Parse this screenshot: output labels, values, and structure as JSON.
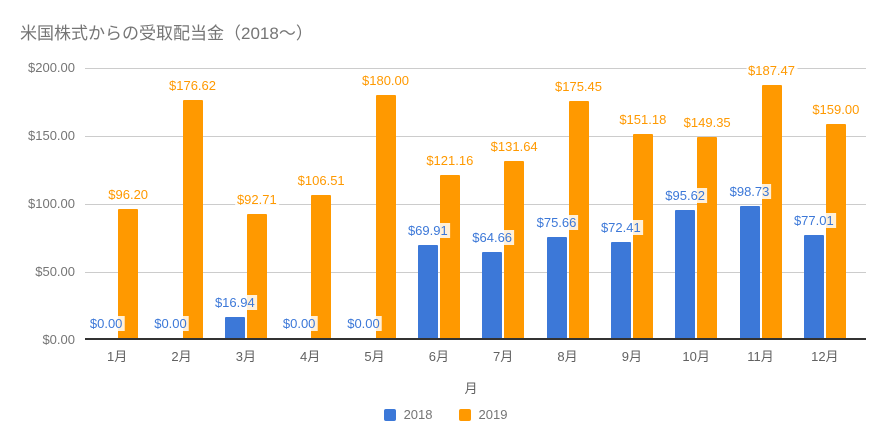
{
  "title": "米国株式からの受取配当金（2018～）",
  "colors": {
    "series_2018": "#3C78D8",
    "series_2019": "#FF9900",
    "title_text": "#757575",
    "axis_text": "#616161",
    "gridline": "#CCCCCC",
    "axis_line": "#333333",
    "background": "#FFFFFF"
  },
  "chart_data": {
    "type": "bar",
    "title": "米国株式からの受取配当金（2018～）",
    "categories": [
      "1月",
      "2月",
      "3月",
      "4月",
      "5月",
      "6月",
      "7月",
      "8月",
      "9月",
      "10月",
      "11月",
      "12月"
    ],
    "series": [
      {
        "name": "2018",
        "color": "#3C78D8",
        "values": [
          0,
          0,
          16.94,
          0,
          0,
          69.91,
          64.66,
          75.66,
          72.41,
          95.62,
          98.73,
          77.01
        ]
      },
      {
        "name": "2019",
        "color": "#FF9900",
        "values": [
          96.2,
          176.62,
          92.71,
          106.51,
          180.0,
          121.16,
          131.64,
          175.45,
          151.18,
          149.35,
          187.47,
          159.0
        ]
      }
    ],
    "value_labels": [
      [
        "$0.00",
        "$0.00",
        "$16.94",
        "$0.00",
        "$0.00",
        "$69.91",
        "$64.66",
        "$75.66",
        "$72.41",
        "$95.62",
        "$98.73",
        "$77.01"
      ],
      [
        "$96.20",
        "$176.62",
        "$92.71",
        "$106.51",
        "$180.00",
        "$121.16",
        "$131.64",
        "$175.45",
        "$151.18",
        "$149.35",
        "$187.47",
        "$159.00"
      ]
    ],
    "y_ticks": [
      {
        "label": "$0.00",
        "value": 0
      },
      {
        "label": "$50.00",
        "value": 50
      },
      {
        "label": "$100.00",
        "value": 100
      },
      {
        "label": "$150.00",
        "value": 150
      },
      {
        "label": "$200.00",
        "value": 200
      }
    ],
    "ylim": [
      0,
      200
    ],
    "xlabel": "月",
    "grid": true,
    "legend_position": "bottom"
  }
}
